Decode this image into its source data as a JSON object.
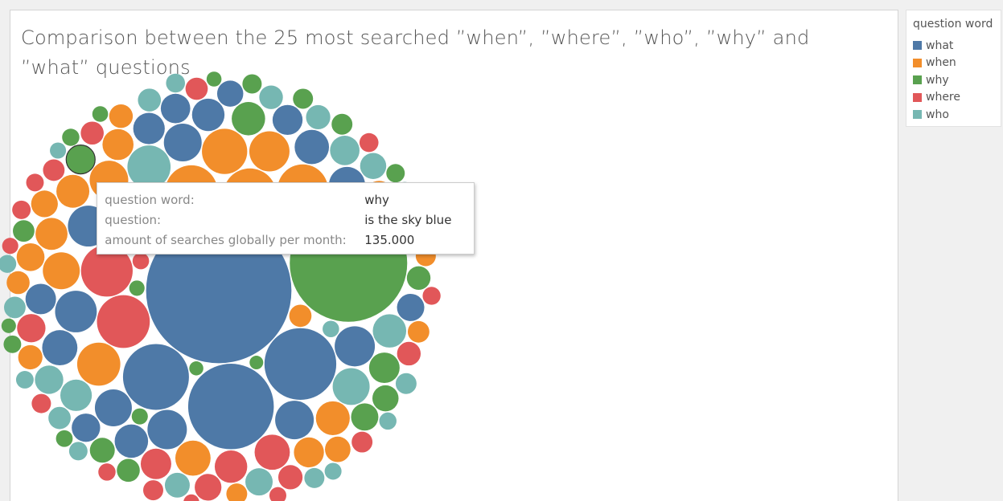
{
  "chart_data": {
    "type": "bubble",
    "title": "Comparison between the 25 most searched ”when”, ”where”, ”who”, ”why” and ”what” questions",
    "legend_title": "question word",
    "series": [
      {
        "name": "what",
        "color": "#4e79a7",
        "values": [
          3400000,
          1180000,
          830000,
          700000,
          620000,
          280000,
          270000,
          260000,
          250000,
          240000,
          230000,
          220000,
          210000,
          200000,
          190000,
          180000,
          170000,
          165000,
          160000,
          150000,
          145000,
          140000,
          130000,
          120000,
          110000
        ]
      },
      {
        "name": "when",
        "color": "#f28e2b",
        "values": [
          460000,
          440000,
          410000,
          330000,
          300000,
          260000,
          240000,
          220000,
          200000,
          185000,
          175000,
          165000,
          155000,
          145000,
          135000,
          125000,
          115000,
          105000,
          95000,
          90000,
          85000,
          80000,
          75000,
          70000,
          65000
        ]
      },
      {
        "name": "why",
        "color": "#59a14f",
        "values": [
          2220000,
          180000,
          150000,
          135000,
          120000,
          110000,
          100000,
          90000,
          85000,
          80000,
          75000,
          70000,
          65000,
          60000,
          55000,
          50000,
          48000,
          45000,
          42000,
          40000,
          38000,
          36000,
          34000,
          32000,
          30000
        ]
      },
      {
        "name": "where",
        "color": "#e15759",
        "values": [
          450000,
          430000,
          200000,
          170000,
          150000,
          130000,
          115000,
          100000,
          95000,
          90000,
          85000,
          80000,
          75000,
          70000,
          65000,
          60000,
          58000,
          55000,
          52000,
          50000,
          48000,
          46000,
          44000,
          42000,
          40000
        ]
      },
      {
        "name": "who",
        "color": "#76b7b2",
        "values": [
          300000,
          220000,
          180000,
          160000,
          140000,
          130000,
          120000,
          110000,
          100000,
          95000,
          90000,
          85000,
          80000,
          75000,
          70000,
          65000,
          60000,
          58000,
          55000,
          52000,
          50000,
          48000,
          46000,
          44000,
          42000
        ]
      }
    ],
    "tooltip": {
      "labels": [
        "question word:",
        "question:",
        "amount of searches globally per month:"
      ],
      "word": "why",
      "question": "is the sky blue",
      "amount": {
        "value": 135000,
        "label": "135.000"
      }
    }
  }
}
